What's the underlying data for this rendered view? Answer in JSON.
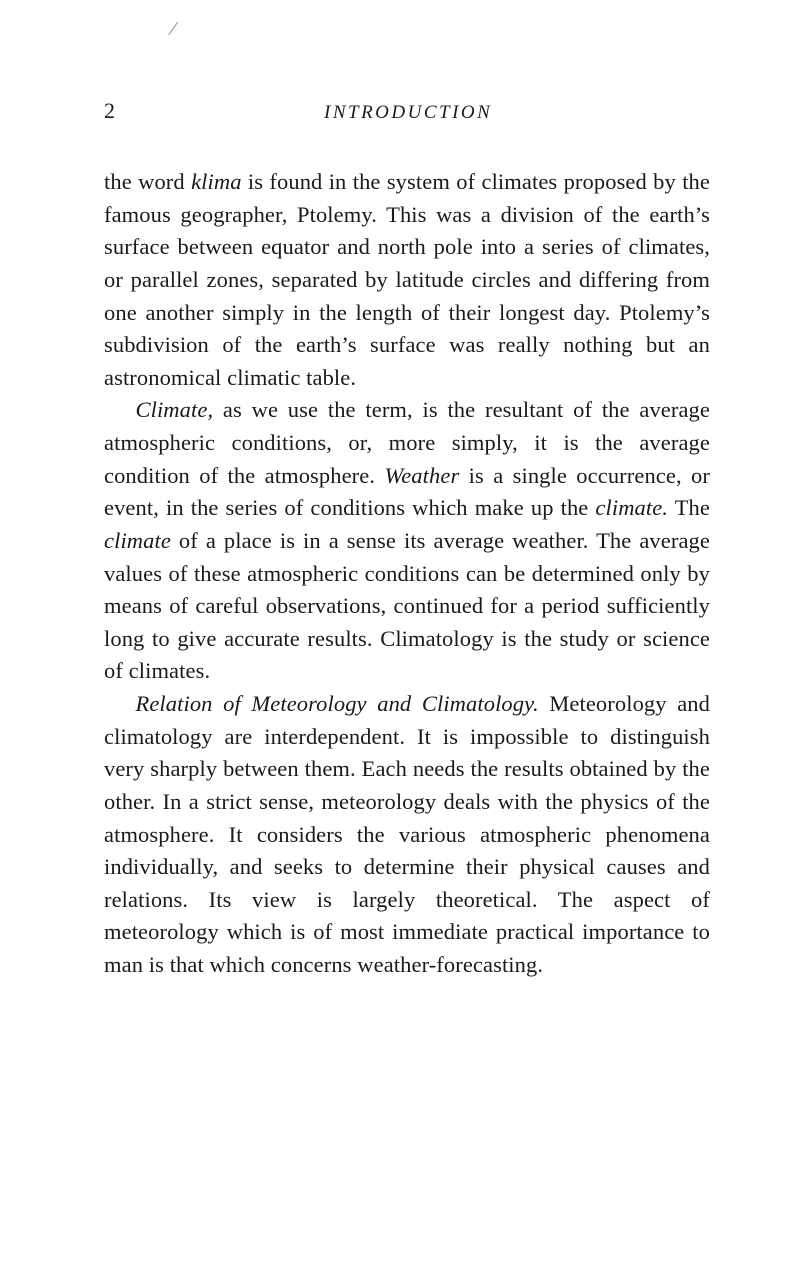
{
  "page": {
    "number": "2",
    "running_title": "INTRODUCTION",
    "slash": "/"
  },
  "paragraphs": {
    "p1": {
      "seg1": "the word ",
      "italic1": "klima",
      "seg2": " is found in the system of climates pro­posed by the famous geographer, Ptolemy. This was a division of the earth’s surface between equator and north pole into a series of climates, or parallel zones, separated by latitude circles and differing from one another simply in the length of their longest day. Ptolemy’s subdivision of the earth’s surface was really nothing but an astronomical climatic table."
    },
    "p2": {
      "italic1": "Climate,",
      "seg1": " as we use the term, is the resultant of the average atmospheric conditions, or, more simply, it is the average condition of the atmosphere. ",
      "italic2": "Weather",
      "seg2": " is a single occurrence, or event, in the series of condi­tions which make up the ",
      "italic3": "climate.",
      "seg3": " The ",
      "italic4": "climate",
      "seg4": " of a place is in a sense its average weather. The average values of these atmospheric conditions can be deter­mined only by means of careful observations, con­tinued for a period sufficiently long to give accurate results. Climatology is the study or science of climates."
    },
    "p3": {
      "italic1": "Relation of Meteorology and Climatology.",
      "seg1": " Mete­orology and climatology are interdependent. It is impossible to distinguish very sharply between them. Each needs the results obtained by the other. In a strict sense, meteorology deals with the physics of the atmosphere. It considers the various atmo­spheric phenomena individually, and seeks to deter­mine their physical causes and relations. Its view is largely theoretical. The aspect of meteorology which is of most immediate practical importance to man is that which concerns weather-forecasting."
    }
  }
}
